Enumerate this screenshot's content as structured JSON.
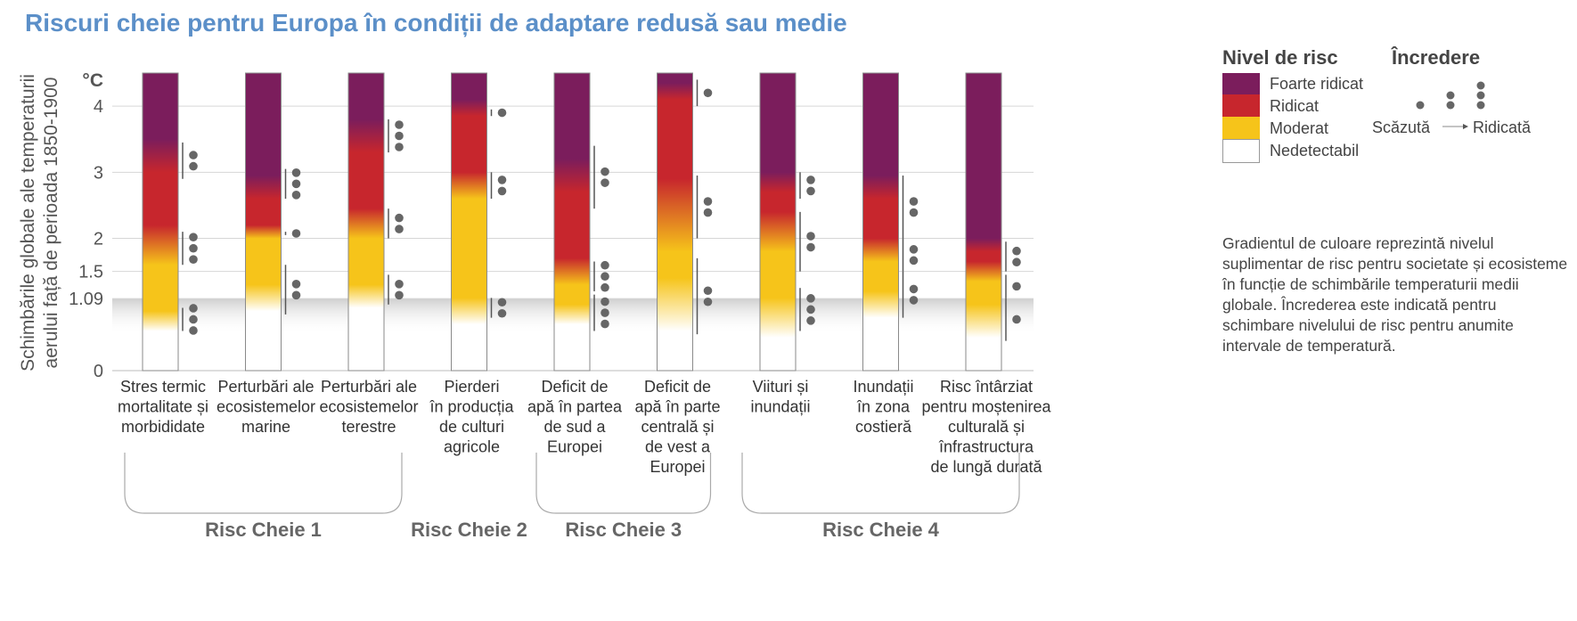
{
  "title": "Riscuri cheie pentru Europa în condiții de adaptare redusă sau medie",
  "legend": {
    "risk_header": "Nivel de risc",
    "confidence_header": "Încredere",
    "levels": [
      {
        "label": "Foarte ridicat",
        "color": "#7b1d5c"
      },
      {
        "label": "Ridicat",
        "color": "#c7262d"
      },
      {
        "label": "Moderat",
        "color": "#f6c41a"
      },
      {
        "label": "Nedetectabil",
        "color": "#ffffff"
      }
    ],
    "confidence_low": "Scăzută",
    "confidence_high": "Ridicată"
  },
  "note": "Gradientul de culoare reprezintă nivelul suplimentar de risc pentru societate și ecosisteme în funcție de schimbările temperaturii medii globale. Încrederea este indicată pentru schimbare nivelului de risc pentru anumite intervale de temperatură.",
  "chart_data": {
    "type": "bar",
    "ylabel": [
      "Schimbările globale ale temperaturii",
      "aerului față de perioada 1850-1900"
    ],
    "unit": "°C",
    "ylim": [
      0,
      4.5
    ],
    "yticks": [
      {
        "value": 0,
        "label": "0"
      },
      {
        "value": 1.09,
        "label": "1.09"
      },
      {
        "value": 1.5,
        "label": "1.5"
      },
      {
        "value": 2,
        "label": "2"
      },
      {
        "value": 3,
        "label": "3"
      },
      {
        "value": 4,
        "label": "4"
      }
    ],
    "observed_warming_band": 1.09,
    "categories": [
      {
        "label": [
          "Stres termic",
          "mortalitate și",
          "morbididate"
        ],
        "stops": [
          [
            0.6,
            "#ffffff"
          ],
          [
            0.9,
            "#f6c41a"
          ],
          [
            1.6,
            "#f6c41a"
          ],
          [
            2.2,
            "#c7262d"
          ],
          [
            3.0,
            "#c7262d"
          ],
          [
            3.5,
            "#7b1d5c"
          ]
        ],
        "confidence": [
          {
            "range": [
              0.6,
              0.95
            ],
            "dots": 3
          },
          {
            "range": [
              1.6,
              2.1
            ],
            "dots": 3
          },
          {
            "range": [
              2.9,
              3.45
            ],
            "dots": 2
          }
        ]
      },
      {
        "label": [
          "Perturbări ale",
          "ecosistemelor",
          "marine"
        ],
        "stops": [
          [
            0.9,
            "#ffffff"
          ],
          [
            1.3,
            "#f6c41a"
          ],
          [
            2.0,
            "#f6c41a"
          ],
          [
            2.2,
            "#c7262d"
          ],
          [
            2.6,
            "#c7262d"
          ],
          [
            2.95,
            "#7b1d5c"
          ]
        ],
        "confidence": [
          {
            "range": [
              0.85,
              1.6
            ],
            "dots": 2
          },
          {
            "range": [
              2.05,
              2.1
            ],
            "dots": 1
          },
          {
            "range": [
              2.6,
              3.05
            ],
            "dots": 3
          }
        ]
      },
      {
        "label": [
          "Perturbări ale",
          "ecosistemelor",
          "terestre"
        ],
        "stops": [
          [
            0.95,
            "#ffffff"
          ],
          [
            1.3,
            "#f6c41a"
          ],
          [
            2.0,
            "#f6c41a"
          ],
          [
            2.45,
            "#c7262d"
          ],
          [
            3.3,
            "#c7262d"
          ],
          [
            3.8,
            "#7b1d5c"
          ]
        ],
        "confidence": [
          {
            "range": [
              1.0,
              1.45
            ],
            "dots": 2
          },
          {
            "range": [
              2.0,
              2.45
            ],
            "dots": 2
          },
          {
            "range": [
              3.3,
              3.8
            ],
            "dots": 3
          }
        ]
      },
      {
        "label": [
          "Pierderi",
          "în producția",
          "de culturi",
          "agricole"
        ],
        "stops": [
          [
            0.7,
            "#ffffff"
          ],
          [
            1.1,
            "#f6c41a"
          ],
          [
            2.6,
            "#f6c41a"
          ],
          [
            3.0,
            "#c7262d"
          ],
          [
            3.85,
            "#c7262d"
          ],
          [
            4.1,
            "#7b1d5c"
          ]
        ],
        "confidence": [
          {
            "range": [
              0.8,
              1.1
            ],
            "dots": 2
          },
          {
            "range": [
              2.6,
              3.0
            ],
            "dots": 2
          },
          {
            "range": [
              3.85,
              3.95
            ],
            "dots": 1
          }
        ]
      },
      {
        "label": [
          "Deficit de",
          "apă în partea",
          "de sud a",
          "Europei"
        ],
        "stops": [
          [
            0.7,
            "#ffffff"
          ],
          [
            1.0,
            "#f6c41a"
          ],
          [
            1.3,
            "#f6c41a"
          ],
          [
            1.7,
            "#c7262d"
          ],
          [
            2.7,
            "#c7262d"
          ],
          [
            3.2,
            "#7b1d5c"
          ]
        ],
        "confidence": [
          {
            "range": [
              0.6,
              1.15
            ],
            "dots": 3
          },
          {
            "range": [
              1.2,
              1.65
            ],
            "dots": 3
          },
          {
            "range": [
              2.45,
              3.4
            ],
            "dots": 2
          }
        ]
      },
      {
        "label": [
          "Deficit de",
          "apă în parte",
          "centrală și",
          "de vest a",
          "Europei"
        ],
        "stops": [
          [
            0.6,
            "#ffffff"
          ],
          [
            1.4,
            "#f6c41a"
          ],
          [
            1.8,
            "#f6c41a"
          ],
          [
            2.9,
            "#c7262d"
          ],
          [
            4.1,
            "#c7262d"
          ],
          [
            4.35,
            "#7b1d5c"
          ]
        ],
        "confidence": [
          {
            "range": [
              0.55,
              1.7
            ],
            "dots": 2
          },
          {
            "range": [
              2.0,
              2.95
            ],
            "dots": 2
          },
          {
            "range": [
              4.0,
              4.4
            ],
            "dots": 1
          }
        ]
      },
      {
        "label": [
          "Viituri și",
          "inundații"
        ],
        "stops": [
          [
            0.5,
            "#ffffff"
          ],
          [
            1.1,
            "#f6c41a"
          ],
          [
            1.8,
            "#f6c41a"
          ],
          [
            2.4,
            "#c7262d"
          ],
          [
            2.7,
            "#c7262d"
          ],
          [
            3.0,
            "#7b1d5c"
          ]
        ],
        "confidence": [
          {
            "range": [
              0.6,
              1.25
            ],
            "dots": 3
          },
          {
            "range": [
              1.5,
              2.4
            ],
            "dots": 2
          },
          {
            "range": [
              2.6,
              3.0
            ],
            "dots": 2
          }
        ]
      },
      {
        "label": [
          "Inundații",
          "în zona",
          "costieră"
        ],
        "stops": [
          [
            0.8,
            "#ffffff"
          ],
          [
            1.2,
            "#f6c41a"
          ],
          [
            1.65,
            "#f6c41a"
          ],
          [
            2.0,
            "#c7262d"
          ],
          [
            2.6,
            "#c7262d"
          ],
          [
            2.95,
            "#7b1d5c"
          ]
        ],
        "confidence": [
          {
            "range": [
              0.8,
              1.5
            ],
            "dots": 2
          },
          {
            "range": [
              1.5,
              2.0
            ],
            "dots": 2
          },
          {
            "range": [
              2.0,
              2.95
            ],
            "dots": 2
          }
        ]
      },
      {
        "label": [
          "Risc întârziat",
          "pentru moștenirea",
          "culturală și",
          "înfrastructura",
          "de lungă durată"
        ],
        "stops": [
          [
            0.5,
            "#ffffff"
          ],
          [
            1.0,
            "#f6c41a"
          ],
          [
            1.35,
            "#f6c41a"
          ],
          [
            1.65,
            "#c7262d"
          ],
          [
            1.8,
            "#c7262d"
          ],
          [
            2.0,
            "#7b1d5c"
          ]
        ],
        "confidence": [
          {
            "range": [
              0.45,
              1.1
            ],
            "dots": 1
          },
          {
            "range": [
              1.1,
              1.45
            ],
            "dots": 1
          },
          {
            "range": [
              1.5,
              1.95
            ],
            "dots": 2
          }
        ]
      }
    ],
    "groups": [
      {
        "label": "Risc Cheie 1",
        "from": 0,
        "to": 2
      },
      {
        "label": "Risc Cheie 2",
        "from": 3,
        "to": 3
      },
      {
        "label": "Risc Cheie 3",
        "from": 4,
        "to": 5
      },
      {
        "label": "Risc Cheie 4",
        "from": 6,
        "to": 8
      }
    ]
  }
}
